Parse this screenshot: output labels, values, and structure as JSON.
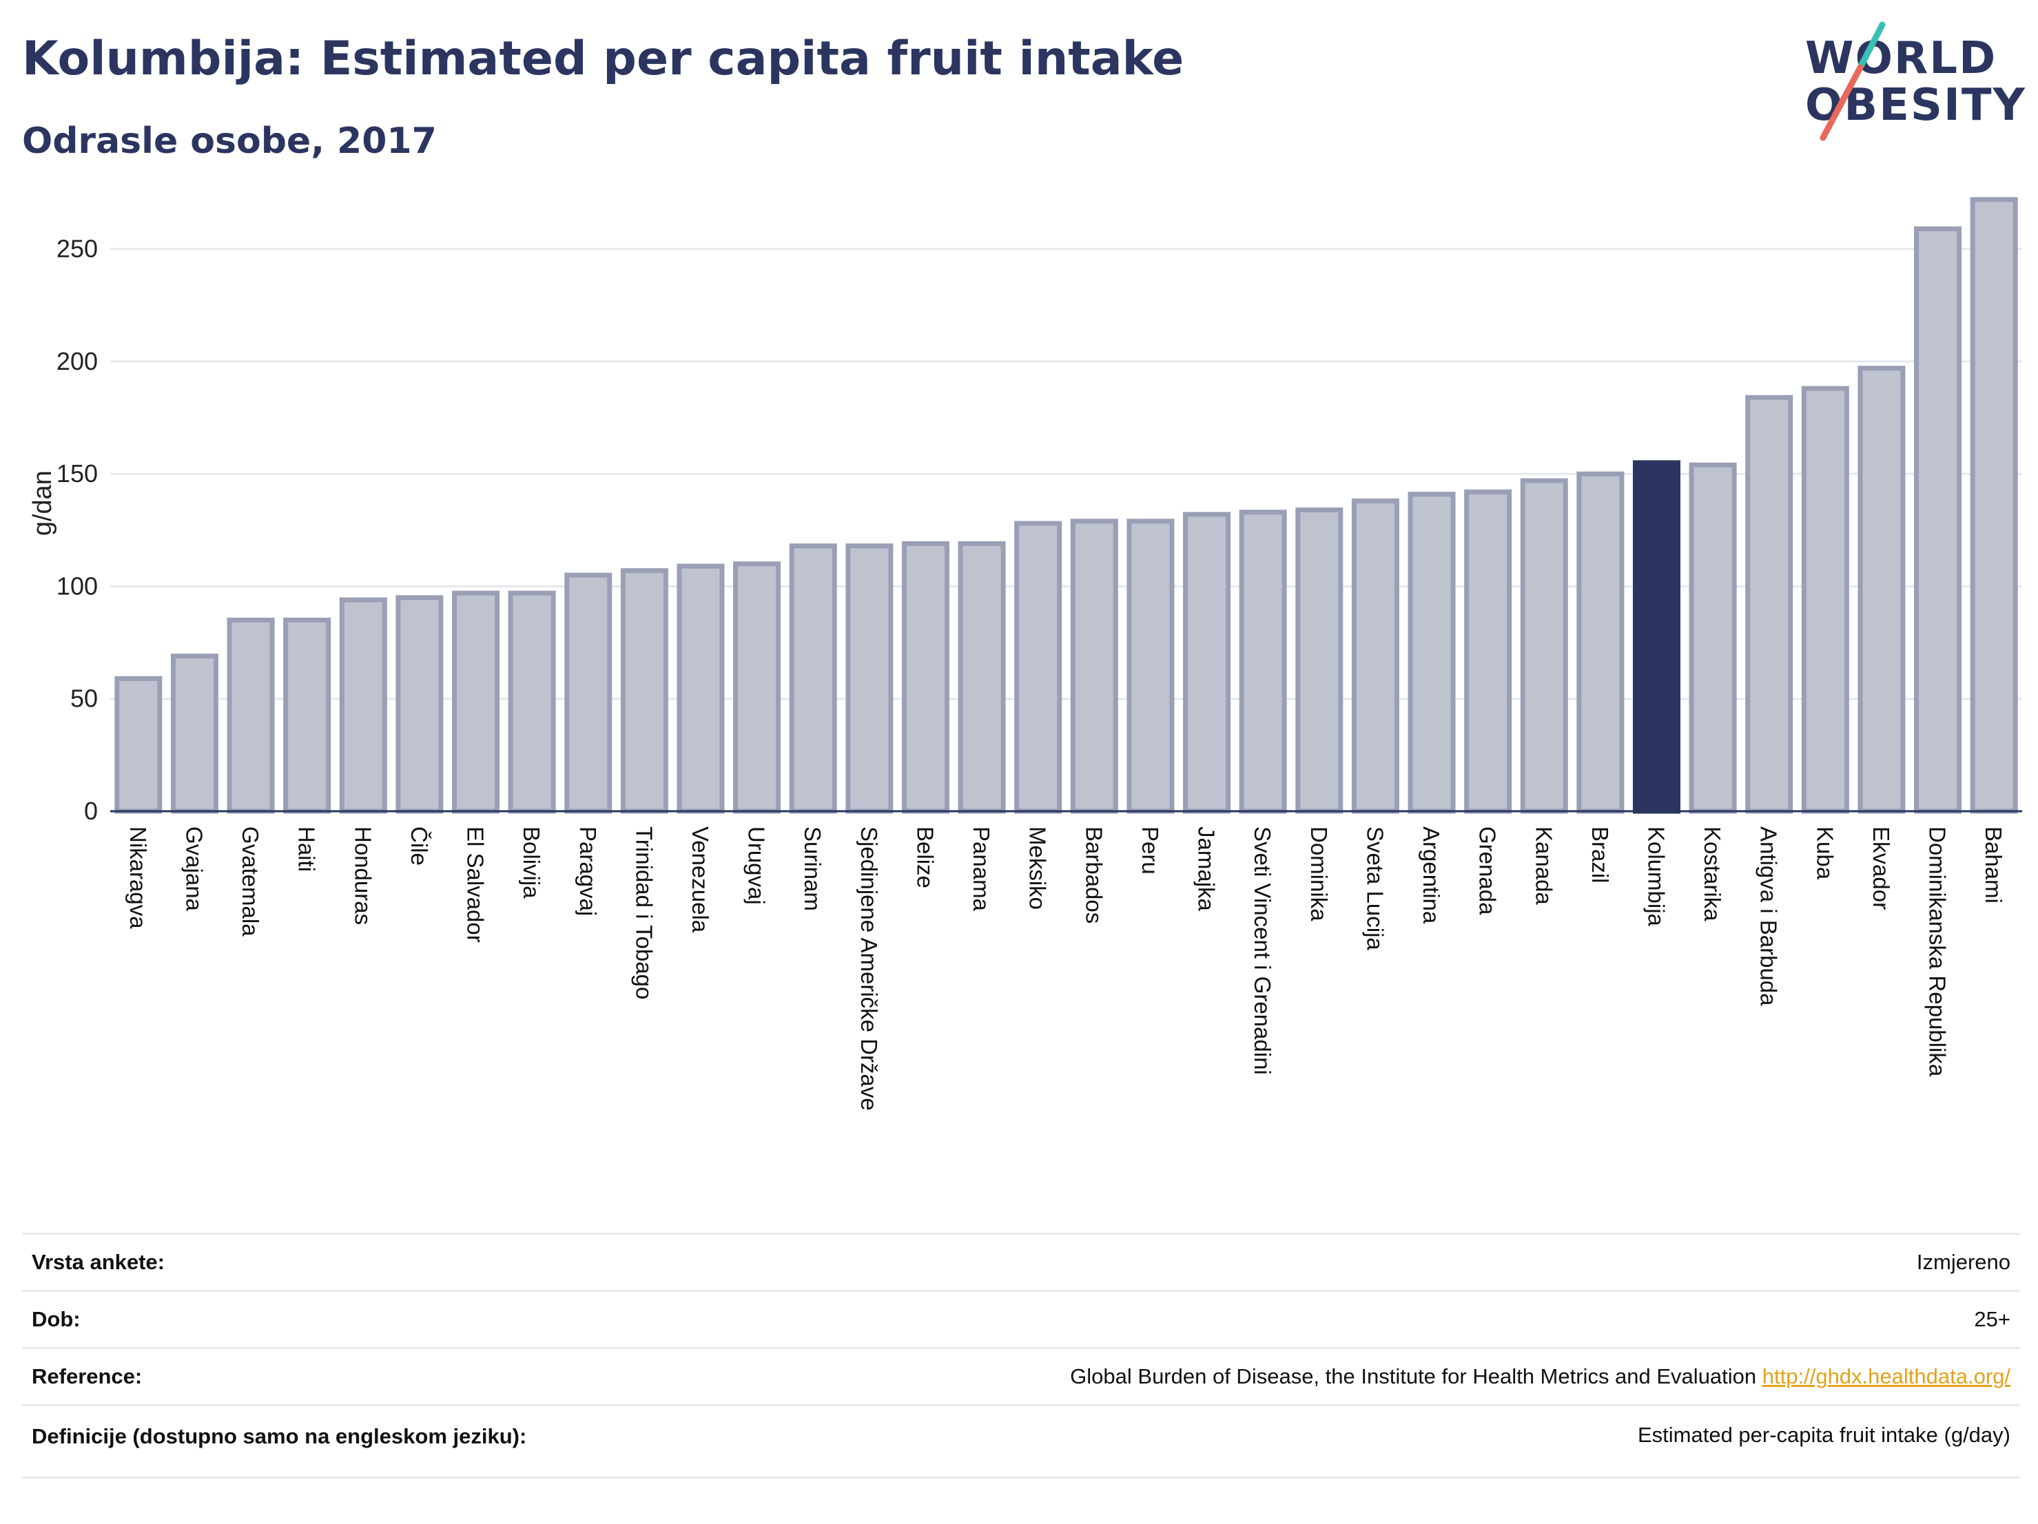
{
  "header": {
    "title": "Kolumbija: Estimated per capita fruit intake",
    "subtitle": "Odrasle osobe, 2017"
  },
  "logo": {
    "line1": "WORLD",
    "line2": "OBESITY",
    "colors": {
      "text": "#2b3560",
      "teal": "#3bbfb3",
      "coral": "#e8695a"
    }
  },
  "chart_data": {
    "type": "bar",
    "ylabel": "g/dan",
    "ylim": [
      0,
      275
    ],
    "yticks": [
      0,
      50,
      100,
      150,
      200,
      250
    ],
    "grid": true,
    "highlight": "Kolumbija",
    "colors": {
      "bar": "#bfc2cf",
      "bar_edge": "#9a9fb6",
      "highlight": "#2b3560",
      "grid": "#e6e8ee"
    },
    "categories": [
      "Nikaragva",
      "Gvajana",
      "Gvatemala",
      "Haiti",
      "Honduras",
      "Čile",
      "El Salvador",
      "Bolivija",
      "Paragvaj",
      "Trinidad i Tobago",
      "Venezuela",
      "Urugvaj",
      "Surinam",
      "Sjedinjene Američke Države",
      "Belize",
      "Panama",
      "Meksiko",
      "Barbados",
      "Peru",
      "Jamajka",
      "Sveti Vincent i Grenadini",
      "Dominika",
      "Sveta Lucija",
      "Argentina",
      "Grenada",
      "Kanada",
      "Brazil",
      "Kolumbija",
      "Kostarika",
      "Antigva i Barbuda",
      "Kuba",
      "Ekvador",
      "Dominikanska Republika",
      "Bahami"
    ],
    "values": [
      59,
      69,
      85,
      85,
      94,
      95,
      97,
      97,
      105,
      107,
      109,
      110,
      118,
      118,
      119,
      119,
      128,
      129,
      129,
      132,
      133,
      134,
      138,
      141,
      142,
      147,
      150,
      155,
      154,
      184,
      188,
      197,
      259,
      272
    ]
  },
  "info_table": [
    {
      "label": "Vrsta ankete:",
      "value": "Izmjereno"
    },
    {
      "label": "Dob:",
      "value": "25+"
    },
    {
      "label": "Reference:",
      "value": "Global Burden of Disease, the Institute for Health Metrics and Evaluation",
      "link": "http://ghdx.healthdata.org/"
    },
    {
      "label": "Definicije (dostupno samo na engleskom jeziku):",
      "value": "Estimated per-capita fruit intake (g/day)"
    }
  ]
}
